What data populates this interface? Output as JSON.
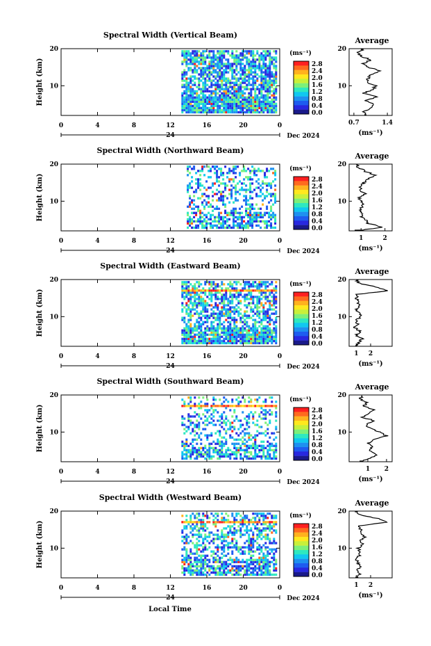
{
  "figure": {
    "x_caption": "Local Time",
    "date_label": "Dec 2024",
    "day_label": "24",
    "unit_label": "(ms⁻¹)",
    "panel_avg_title": "Average",
    "main_ylabel": "Height (km)"
  },
  "colorbar": {
    "ticks": [
      "2.8",
      "2.4",
      "2.0",
      "1.6",
      "1.2",
      "0.8",
      "0.4",
      "0.0"
    ],
    "colors": [
      "#ff2020",
      "#ff6a1e",
      "#ffb21e",
      "#ffe81e",
      "#c8f03a",
      "#7cf07a",
      "#2ee8c0",
      "#10c8f0",
      "#1e90f0",
      "#1e5cf0",
      "#2828e0",
      "#1a1a8a"
    ]
  },
  "chart_data": [
    {
      "type": "heatmap",
      "title": "Spectral Width (Vertical Beam)",
      "xlabel": "",
      "ylabel": "Height (km)",
      "xlim": [
        0,
        24
      ],
      "ylim": [
        2,
        20
      ],
      "x_ticks": [
        "0",
        "4",
        "8",
        "12",
        "16",
        "20",
        "0"
      ],
      "y_ticks": [
        "10",
        "20"
      ],
      "data_start_hour": 13.2,
      "value_range_ms": [
        0.0,
        2.8
      ],
      "average_profile": {
        "xlabel": "(ms⁻¹)",
        "x_ticks": [
          "0.7",
          "1.4"
        ],
        "xlim": [
          0.6,
          1.5
        ],
        "heights_km": [
          2,
          3,
          4,
          5,
          6,
          7,
          8,
          9,
          10,
          11,
          12,
          13,
          14,
          15,
          16,
          17,
          18,
          19,
          20
        ],
        "values": [
          0.95,
          0.9,
          1.05,
          1.1,
          0.95,
          1.2,
          0.9,
          1.1,
          1.15,
          0.95,
          1.0,
          1.05,
          1.25,
          1.0,
          0.9,
          1.05,
          0.85,
          0.8,
          0.9
        ]
      }
    },
    {
      "type": "heatmap",
      "title": "Spectral Width (Northward Beam)",
      "xlabel": "",
      "ylabel": "Height (km)",
      "xlim": [
        0,
        24
      ],
      "ylim": [
        2,
        20
      ],
      "x_ticks": [
        "0",
        "4",
        "8",
        "12",
        "16",
        "20",
        "0"
      ],
      "y_ticks": [
        "10",
        "20"
      ],
      "data_start_hour": 13.8,
      "value_range_ms": [
        0.0,
        2.8
      ],
      "average_profile": {
        "xlabel": "(ms⁻¹)",
        "x_ticks": [
          "1",
          "2"
        ],
        "xlim": [
          0.5,
          2.3
        ],
        "heights_km": [
          2,
          3,
          4,
          5,
          6,
          7,
          8,
          9,
          10,
          11,
          12,
          13,
          14,
          15,
          16,
          17,
          18,
          19,
          20
        ],
        "values": [
          0.8,
          1.9,
          1.3,
          1.2,
          1.0,
          1.05,
          0.95,
          1.1,
          1.0,
          0.9,
          1.15,
          0.95,
          1.0,
          1.1,
          1.3,
          1.6,
          1.2,
          0.9,
          0.8
        ]
      }
    },
    {
      "type": "heatmap",
      "title": "Spectral Width (Eastward Beam)",
      "xlabel": "",
      "ylabel": "Height (km)",
      "xlim": [
        0,
        24
      ],
      "ylim": [
        2,
        20
      ],
      "x_ticks": [
        "0",
        "4",
        "8",
        "12",
        "16",
        "20",
        "0"
      ],
      "y_ticks": [
        "10",
        "20"
      ],
      "data_start_hour": 13.2,
      "value_range_ms": [
        0.0,
        2.8
      ],
      "average_profile": {
        "xlabel": "(ms⁻¹)",
        "x_ticks": [
          "1",
          "2"
        ],
        "xlim": [
          0.5,
          3.5
        ],
        "heights_km": [
          2,
          3,
          4,
          5,
          6,
          7,
          8,
          9,
          10,
          11,
          12,
          13,
          14,
          15,
          16,
          17,
          18,
          19,
          20
        ],
        "values": [
          1.0,
          1.2,
          1.4,
          1.0,
          1.3,
          0.9,
          1.1,
          1.0,
          1.3,
          1.2,
          1.0,
          1.2,
          1.1,
          1.0,
          1.1,
          3.2,
          2.4,
          1.2,
          1.0
        ]
      }
    },
    {
      "type": "heatmap",
      "title": "Spectral Width (Southward Beam)",
      "xlabel": "",
      "ylabel": "Height (km)",
      "xlim": [
        0,
        24
      ],
      "ylim": [
        2,
        20
      ],
      "x_ticks": [
        "0",
        "4",
        "8",
        "12",
        "16",
        "20",
        "0"
      ],
      "y_ticks": [
        "10",
        "20"
      ],
      "data_start_hour": 13.2,
      "value_range_ms": [
        0.0,
        2.8
      ],
      "average_profile": {
        "xlabel": "(ms⁻¹)",
        "x_ticks": [
          "1",
          "2"
        ],
        "xlim": [
          0.0,
          2.3
        ],
        "heights_km": [
          2,
          3,
          4,
          5,
          6,
          7,
          8,
          9,
          10,
          11,
          12,
          13,
          14,
          15,
          16,
          17,
          18,
          19,
          20
        ],
        "values": [
          0.6,
          1.2,
          1.5,
          1.0,
          1.3,
          1.0,
          1.4,
          2.0,
          1.6,
          1.1,
          0.9,
          1.4,
          0.7,
          1.0,
          1.3,
          0.8,
          0.9,
          0.6,
          0.7
        ]
      }
    },
    {
      "type": "heatmap",
      "title": "Spectral Width (Westward Beam)",
      "xlabel": "",
      "ylabel": "Height (km)",
      "xlim": [
        0,
        24
      ],
      "ylim": [
        2,
        20
      ],
      "x_ticks": [
        "0",
        "4",
        "8",
        "12",
        "16",
        "20",
        "0"
      ],
      "y_ticks": [
        "10",
        "20"
      ],
      "data_start_hour": 13.2,
      "value_range_ms": [
        0.0,
        2.8
      ],
      "average_profile": {
        "xlabel": "(ms⁻¹)",
        "x_ticks": [
          "1",
          "2"
        ],
        "xlim": [
          0.5,
          3.5
        ],
        "heights_km": [
          2,
          3,
          4,
          5,
          6,
          7,
          8,
          9,
          10,
          11,
          12,
          13,
          14,
          15,
          16,
          17,
          18,
          19,
          20
        ],
        "values": [
          1.0,
          1.2,
          1.1,
          1.3,
          1.1,
          1.0,
          1.2,
          1.3,
          1.1,
          1.5,
          1.3,
          1.6,
          1.4,
          1.3,
          1.2,
          3.2,
          2.5,
          1.2,
          0.9
        ]
      }
    }
  ]
}
